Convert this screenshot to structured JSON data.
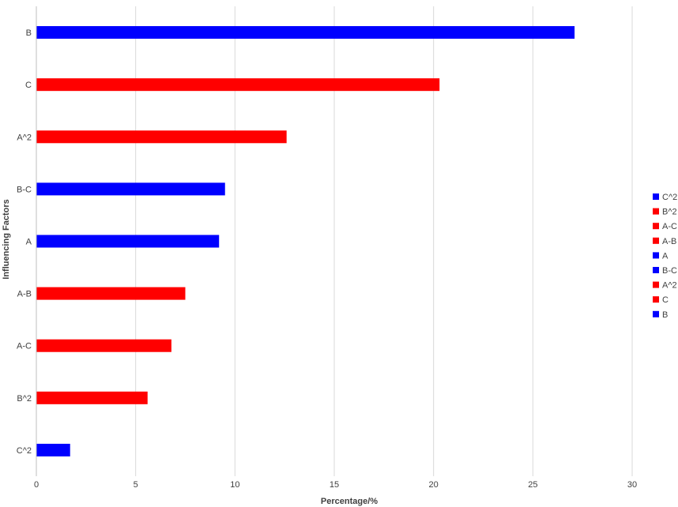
{
  "chart_data": {
    "type": "bar",
    "orientation": "horizontal",
    "title": "",
    "xlabel": "Percentage/%",
    "ylabel": "Influencing Factors",
    "xlim": [
      0,
      30
    ],
    "xticks": [
      0,
      5,
      10,
      15,
      20,
      25,
      30
    ],
    "grid": "vertical",
    "legend_position": "right",
    "categories": [
      "B",
      "C",
      "A^2",
      "B-C",
      "A",
      "A-B",
      "A-C",
      "B^2",
      "C^2"
    ],
    "values": [
      27.1,
      20.3,
      12.6,
      9.5,
      9.2,
      7.5,
      6.8,
      5.6,
      1.7
    ],
    "colors": [
      "#0000ff",
      "#ff0000",
      "#ff0000",
      "#0000ff",
      "#0000ff",
      "#ff0000",
      "#ff0000",
      "#ff0000",
      "#0000ff"
    ],
    "legend": [
      {
        "label": "C^2",
        "color": "#0000ff"
      },
      {
        "label": "B^2",
        "color": "#ff0000"
      },
      {
        "label": "A-C",
        "color": "#ff0000"
      },
      {
        "label": "A-B",
        "color": "#ff0000"
      },
      {
        "label": "A",
        "color": "#0000ff"
      },
      {
        "label": "B-C",
        "color": "#0000ff"
      },
      {
        "label": "A^2",
        "color": "#ff0000"
      },
      {
        "label": "C",
        "color": "#ff0000"
      },
      {
        "label": "B",
        "color": "#0000ff"
      }
    ]
  }
}
